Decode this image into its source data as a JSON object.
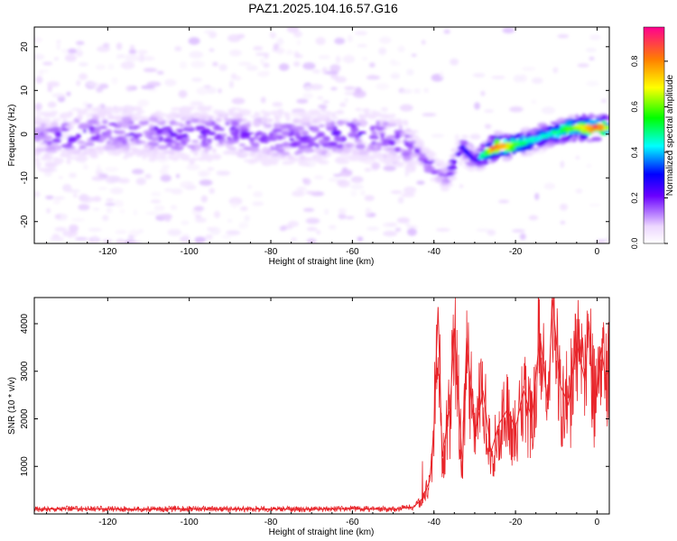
{
  "title": "PAZ1.2025.104.16.57.G16",
  "chart_data": [
    {
      "type": "heatmap",
      "xlabel": "Height of straight line (km)",
      "ylabel": "Frequency (Hz)",
      "xlim": [
        -138,
        3
      ],
      "ylim": [
        -25,
        24.5
      ],
      "xticks": [
        "-120",
        "-100",
        "-80",
        "-60",
        "-40",
        "-20",
        "0"
      ],
      "yticks": [
        "-20",
        "-10",
        "0",
        "10",
        "20"
      ],
      "colorbar": {
        "label": "Normalized spectral amplitude",
        "range": [
          0,
          0.95
        ],
        "ticks": [
          "0.0",
          "0.2",
          "0.4",
          "0.6",
          "0.8"
        ]
      },
      "ridge": [
        {
          "x": -138,
          "y": -1,
          "v": 0.15
        },
        {
          "x": -130,
          "y": -0.5,
          "v": 0.2
        },
        {
          "x": -120,
          "y": 0.5,
          "v": 0.2
        },
        {
          "x": -110,
          "y": 0,
          "v": 0.2
        },
        {
          "x": -100,
          "y": 0,
          "v": 0.22
        },
        {
          "x": -90,
          "y": 0.5,
          "v": 0.2
        },
        {
          "x": -80,
          "y": -1,
          "v": 0.2
        },
        {
          "x": -70,
          "y": -1,
          "v": 0.22
        },
        {
          "x": -60,
          "y": 0,
          "v": 0.22
        },
        {
          "x": -50,
          "y": -1,
          "v": 0.2
        },
        {
          "x": -45,
          "y": -3,
          "v": 0.18
        },
        {
          "x": -40,
          "y": -8,
          "v": 0.2
        },
        {
          "x": -37,
          "y": -10,
          "v": 0.18
        },
        {
          "x": -33,
          "y": -3,
          "v": 0.3
        },
        {
          "x": -30,
          "y": -6,
          "v": 0.25
        },
        {
          "x": -25,
          "y": -3,
          "v": 0.95
        },
        {
          "x": -20,
          "y": -2.5,
          "v": 0.6
        },
        {
          "x": -15,
          "y": -1,
          "v": 0.45
        },
        {
          "x": -10,
          "y": 0.5,
          "v": 0.5
        },
        {
          "x": -5,
          "y": 1.5,
          "v": 0.7
        },
        {
          "x": 0,
          "y": 1.5,
          "v": 0.95
        },
        {
          "x": 3,
          "y": 1.5,
          "v": 0.6
        }
      ]
    },
    {
      "type": "line",
      "xlabel": "Height of straight line (km)",
      "ylabel": "SNR (10 * v/v)",
      "xlim": [
        -138,
        3
      ],
      "ylim": [
        0,
        4550
      ],
      "xticks": [
        "-120",
        "-100",
        "-80",
        "-60",
        "-40",
        "-20",
        "0"
      ],
      "yticks": [
        "1000",
        "2000",
        "3000",
        "4000"
      ],
      "series": [
        {
          "color": "#e8252a",
          "points": [
            [
              -138,
              100
            ],
            [
              -130,
              110
            ],
            [
              -120,
              105
            ],
            [
              -110,
              100
            ],
            [
              -100,
              110
            ],
            [
              -90,
              100
            ],
            [
              -80,
              105
            ],
            [
              -70,
              100
            ],
            [
              -60,
              110
            ],
            [
              -50,
              100
            ],
            [
              -45,
              150
            ],
            [
              -43,
              300
            ],
            [
              -41,
              700
            ],
            [
              -40,
              1800
            ],
            [
              -39,
              4350
            ],
            [
              -38,
              1200
            ],
            [
              -36,
              2300
            ],
            [
              -35,
              3900
            ],
            [
              -33,
              1000
            ],
            [
              -32,
              3700
            ],
            [
              -30,
              1600
            ],
            [
              -28,
              2600
            ],
            [
              -26,
              1300
            ],
            [
              -24,
              1900
            ],
            [
              -22,
              2200
            ],
            [
              -20,
              1800
            ],
            [
              -18,
              2600
            ],
            [
              -16,
              2000
            ],
            [
              -14,
              3800
            ],
            [
              -12,
              2200
            ],
            [
              -11,
              4550
            ],
            [
              -9,
              2700
            ],
            [
              -7,
              2300
            ],
            [
              -5,
              3600
            ],
            [
              -3,
              2800
            ],
            [
              -2,
              4050
            ],
            [
              -1,
              2600
            ],
            [
              0,
              2500
            ],
            [
              1,
              3500
            ],
            [
              2,
              2900
            ],
            [
              3,
              3000
            ]
          ]
        }
      ]
    }
  ]
}
